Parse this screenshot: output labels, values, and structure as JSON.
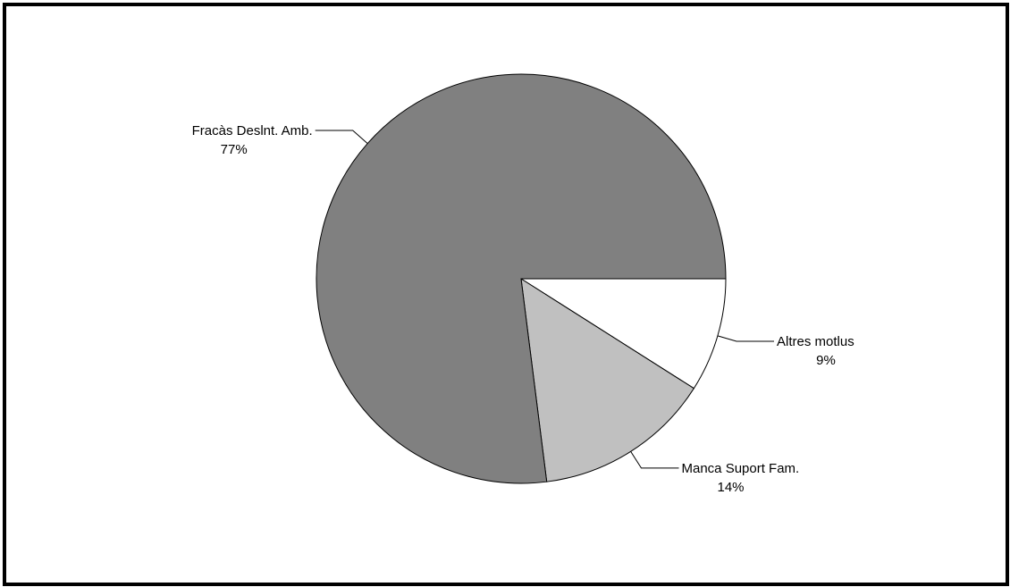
{
  "chart_data": {
    "type": "pie",
    "title": "",
    "start_angle_deg": 0,
    "direction": "clockwise",
    "slices": [
      {
        "name": "Altres motlus",
        "label": "9%",
        "value": 9,
        "color": "#ffffff"
      },
      {
        "name": "Manca Suport Fam.",
        "label": "14%",
        "value": 14,
        "color": "#c0c0c0"
      },
      {
        "name": "Fracàs Deslnt. Amb.",
        "label": "77%",
        "value": 77,
        "color": "#808080"
      }
    ]
  }
}
